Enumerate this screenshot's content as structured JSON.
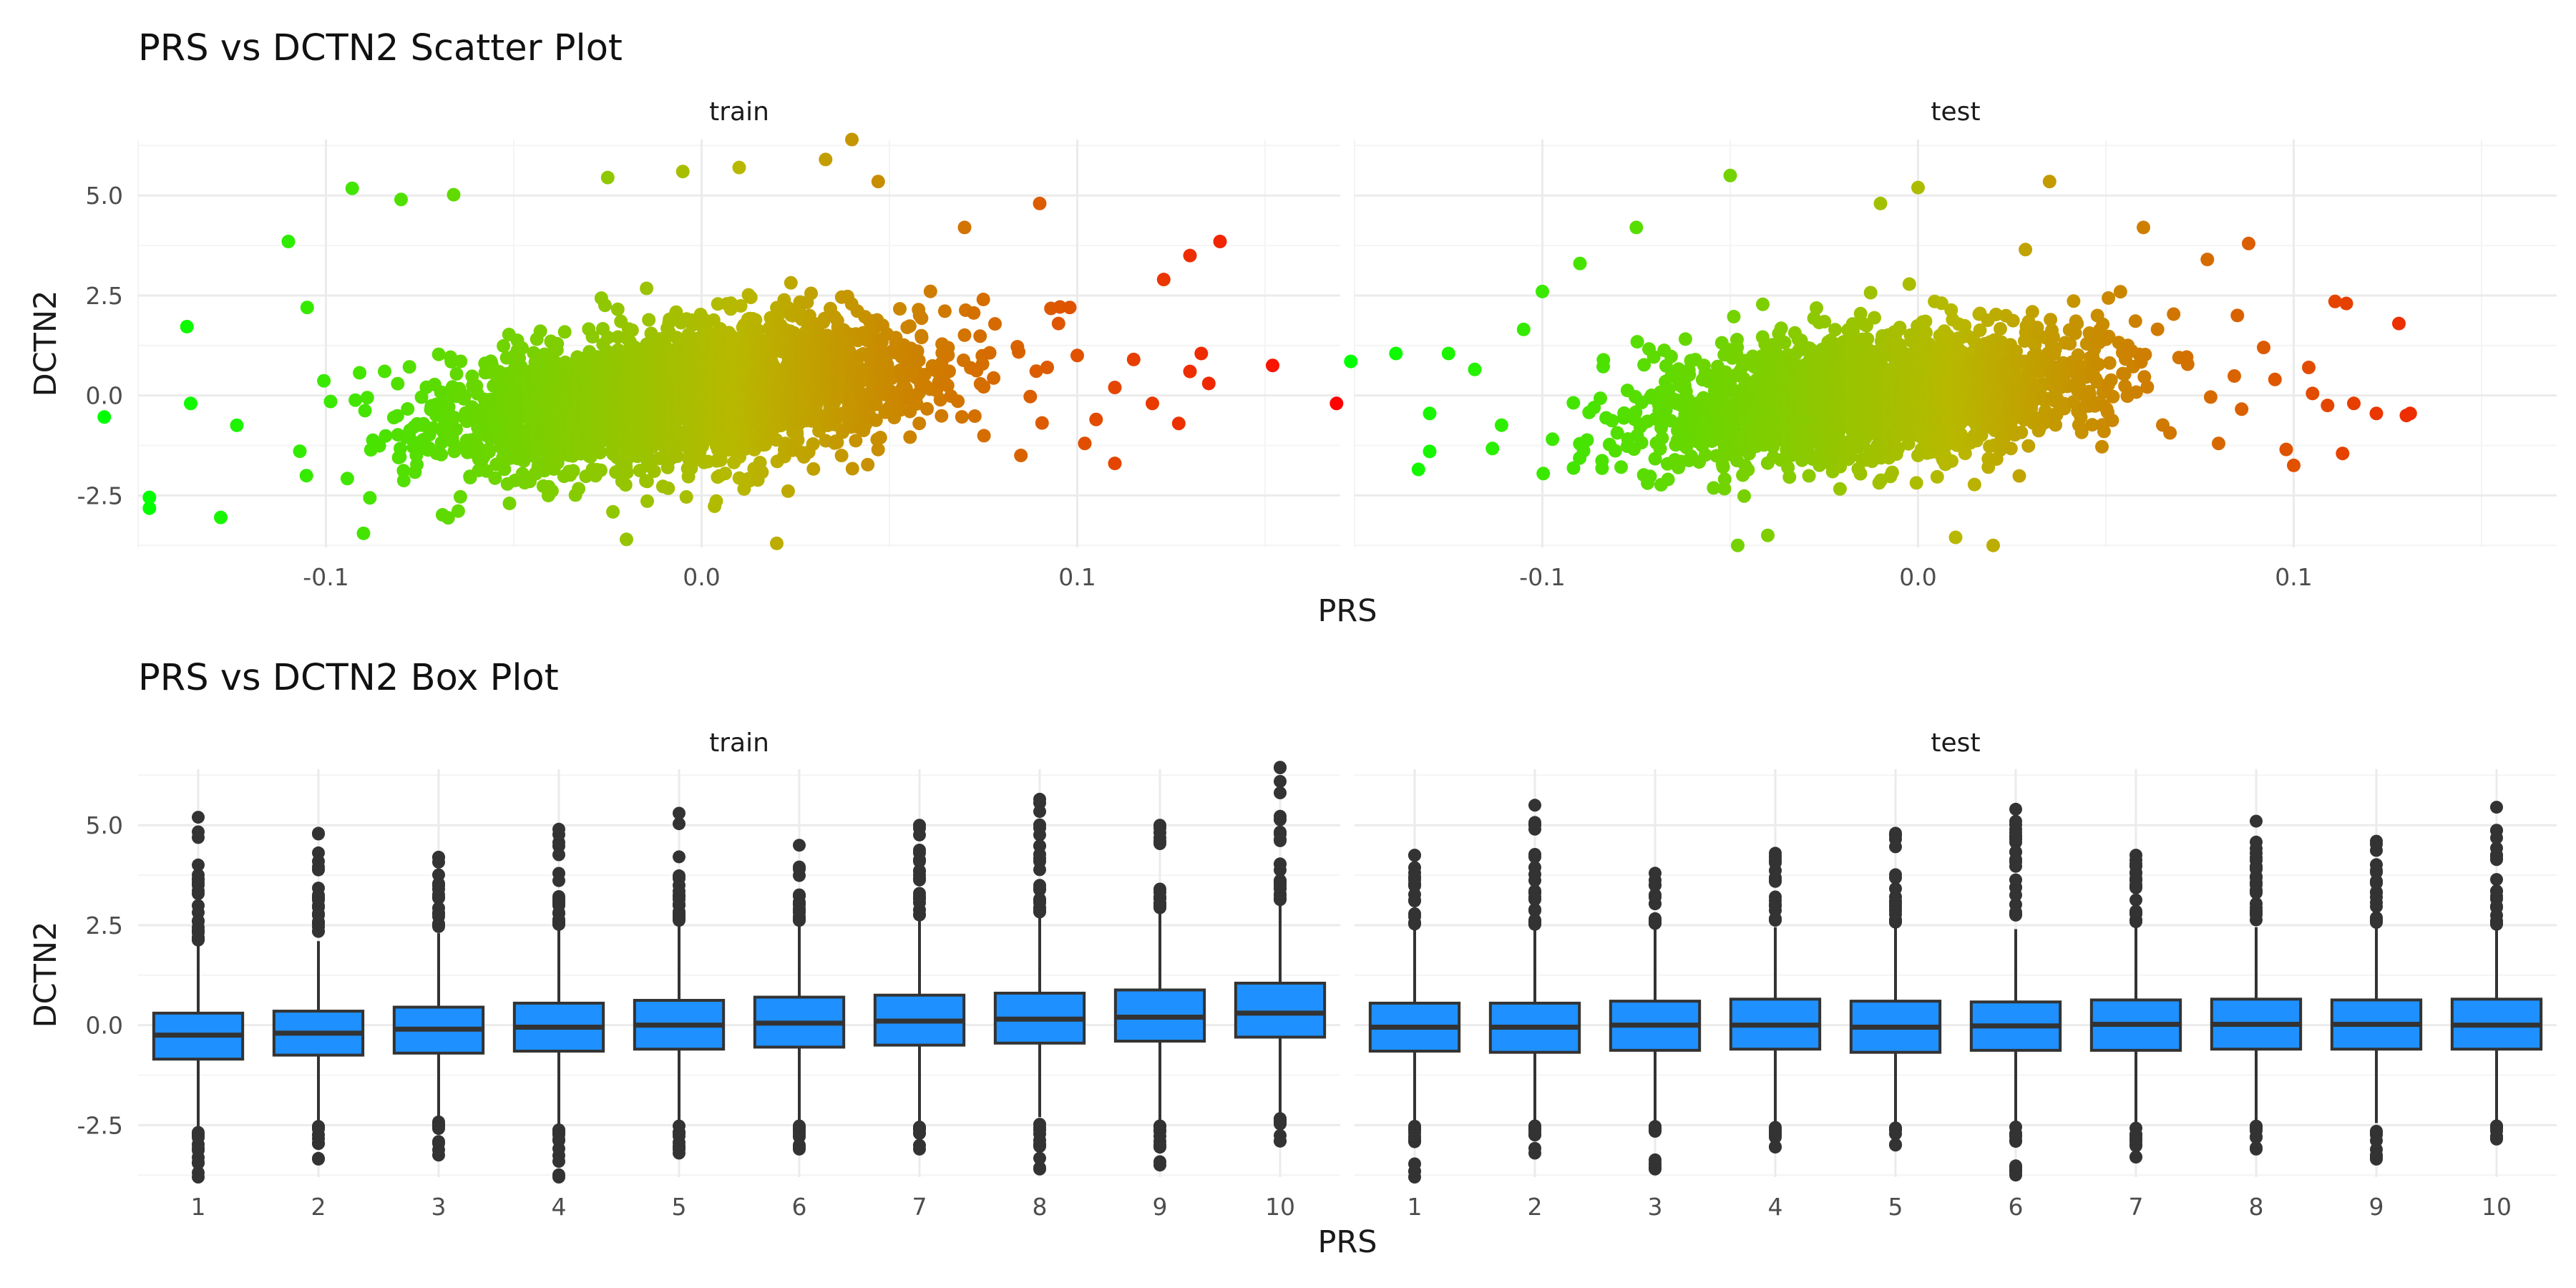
{
  "chart_data": [
    {
      "type": "scatter",
      "title": "PRS vs DCTN2 Scatter Plot",
      "xlabel": "PRS",
      "ylabel": "DCTN2",
      "xlim": [
        -0.15,
        0.17
      ],
      "ylim": [
        -3.8,
        6.4
      ],
      "xticks": [
        "-0.1",
        "0.0",
        "0.1"
      ],
      "yticks": [
        "-2.5",
        "0.0",
        "2.5",
        "5.0"
      ],
      "grid": true,
      "legend": "none",
      "color_scale": {
        "low": "#00ff00",
        "mid": "#b8b800",
        "high": "#ff0000",
        "mapped_to": "PRS"
      },
      "panels": [
        {
          "label": "train",
          "cloud": {
            "n": 2600,
            "x_mean": -0.005,
            "x_sd": 0.032,
            "y_sd": 0.85,
            "slope": 10
          },
          "points": [
            [
              -0.159,
              -0.54
            ],
            [
              -0.147,
              -2.55
            ],
            [
              -0.147,
              -2.82
            ],
            [
              -0.137,
              1.72
            ],
            [
              -0.136,
              -0.2
            ],
            [
              -0.128,
              -3.05
            ],
            [
              -0.11,
              3.85
            ],
            [
              -0.105,
              2.2
            ],
            [
              -0.093,
              5.18
            ],
            [
              -0.09,
              -3.45
            ],
            [
              -0.08,
              4.9
            ],
            [
              -0.066,
              5.02
            ],
            [
              -0.025,
              5.45
            ],
            [
              -0.02,
              -3.6
            ],
            [
              -0.005,
              5.6
            ],
            [
              0.01,
              5.7
            ],
            [
              0.02,
              -3.7
            ],
            [
              0.033,
              5.9
            ],
            [
              0.04,
              6.4
            ],
            [
              0.047,
              5.35
            ],
            [
              0.07,
              4.2
            ],
            [
              0.09,
              4.8
            ],
            [
              0.075,
              2.4
            ],
            [
              0.095,
              1.8
            ],
            [
              0.1,
              1.0
            ],
            [
              0.105,
              -0.6
            ],
            [
              0.11,
              -1.7
            ],
            [
              0.12,
              -0.2
            ],
            [
              0.123,
              2.9
            ],
            [
              0.127,
              -0.7
            ],
            [
              0.13,
              0.6
            ],
            [
              0.13,
              3.5
            ],
            [
              0.133,
              1.05
            ],
            [
              0.135,
              0.3
            ],
            [
              0.138,
              3.85
            ],
            [
              0.152,
              0.75
            ],
            [
              0.169,
              -0.2
            ],
            [
              0.11,
              0.2
            ],
            [
              0.115,
              0.9
            ],
            [
              0.102,
              -1.2
            ],
            [
              0.098,
              2.2
            ],
            [
              0.085,
              -1.5
            ],
            [
              0.092,
              0.7
            ]
          ]
        },
        {
          "label": "test",
          "cloud": {
            "n": 2000,
            "x_mean": -0.01,
            "x_sd": 0.03,
            "y_sd": 0.8,
            "slope": 8
          },
          "points": [
            [
              -0.151,
              0.85
            ],
            [
              -0.139,
              1.05
            ],
            [
              -0.133,
              -1.85
            ],
            [
              -0.13,
              -0.45
            ],
            [
              -0.13,
              -1.4
            ],
            [
              -0.125,
              1.05
            ],
            [
              -0.118,
              0.65
            ],
            [
              -0.105,
              1.65
            ],
            [
              -0.1,
              2.6
            ],
            [
              -0.09,
              3.3
            ],
            [
              -0.075,
              4.2
            ],
            [
              -0.05,
              5.5
            ],
            [
              -0.048,
              -3.75
            ],
            [
              -0.04,
              -3.5
            ],
            [
              -0.01,
              4.8
            ],
            [
              0.0,
              5.2
            ],
            [
              0.01,
              -3.55
            ],
            [
              0.02,
              -3.75
            ],
            [
              0.035,
              5.35
            ],
            [
              0.06,
              4.2
            ],
            [
              0.077,
              3.4
            ],
            [
              0.088,
              3.8
            ],
            [
              0.085,
              2.0
            ],
            [
              0.095,
              0.4
            ],
            [
              0.098,
              -1.35
            ],
            [
              0.104,
              0.7
            ],
            [
              0.1,
              -1.75
            ],
            [
              0.109,
              -0.25
            ],
            [
              0.111,
              2.35
            ],
            [
              0.113,
              -1.45
            ],
            [
              0.114,
              2.3
            ],
            [
              0.116,
              -0.2
            ],
            [
              0.122,
              -0.45
            ],
            [
              0.128,
              1.8
            ],
            [
              0.13,
              -0.5
            ],
            [
              0.131,
              -0.45
            ],
            [
              0.092,
              1.2
            ],
            [
              0.08,
              -1.2
            ],
            [
              0.105,
              0.05
            ]
          ]
        }
      ]
    },
    {
      "type": "box",
      "title": "PRS vs DCTN2 Box Plot",
      "xlabel": "PRS",
      "ylabel": "DCTN2",
      "categories": [
        "1",
        "2",
        "3",
        "4",
        "5",
        "6",
        "7",
        "8",
        "9",
        "10"
      ],
      "ylim": [
        -3.8,
        6.4
      ],
      "yticks": [
        "-2.5",
        "0.0",
        "2.5",
        "5.0"
      ],
      "box_color": "#1e90ff",
      "grid": true,
      "panels": [
        {
          "label": "train",
          "boxes": [
            {
              "q1": -0.85,
              "median": -0.25,
              "q3": 0.3,
              "lower": -2.55,
              "upper": 2.0,
              "out_max": 5.2,
              "out_min": -3.8
            },
            {
              "q1": -0.75,
              "median": -0.2,
              "q3": 0.35,
              "lower": -2.4,
              "upper": 2.1,
              "out_max": 4.8,
              "out_min": -3.35
            },
            {
              "q1": -0.7,
              "median": -0.1,
              "q3": 0.45,
              "lower": -2.3,
              "upper": 2.3,
              "out_max": 4.2,
              "out_min": -3.25
            },
            {
              "q1": -0.65,
              "median": -0.05,
              "q3": 0.55,
              "lower": -2.5,
              "upper": 2.4,
              "out_max": 4.9,
              "out_min": -3.8
            },
            {
              "q1": -0.6,
              "median": 0.0,
              "q3": 0.62,
              "lower": -2.4,
              "upper": 2.5,
              "out_max": 5.3,
              "out_min": -3.2
            },
            {
              "q1": -0.55,
              "median": 0.05,
              "q3": 0.7,
              "lower": -2.4,
              "upper": 2.5,
              "out_max": 4.5,
              "out_min": -3.1
            },
            {
              "q1": -0.5,
              "median": 0.1,
              "q3": 0.75,
              "lower": -2.4,
              "upper": 2.6,
              "out_max": 5.0,
              "out_min": -3.1
            },
            {
              "q1": -0.45,
              "median": 0.15,
              "q3": 0.8,
              "lower": -2.3,
              "upper": 2.7,
              "out_max": 5.65,
              "out_min": -3.6
            },
            {
              "q1": -0.4,
              "median": 0.2,
              "q3": 0.88,
              "lower": -2.4,
              "upper": 2.8,
              "out_max": 5.0,
              "out_min": -3.5
            },
            {
              "q1": -0.3,
              "median": 0.3,
              "q3": 1.05,
              "lower": -2.2,
              "upper": 3.0,
              "out_max": 6.45,
              "out_min": -2.9
            }
          ]
        },
        {
          "label": "test",
          "boxes": [
            {
              "q1": -0.65,
              "median": -0.05,
              "q3": 0.55,
              "lower": -2.4,
              "upper": 2.4,
              "out_max": 4.25,
              "out_min": -3.8
            },
            {
              "q1": -0.68,
              "median": -0.05,
              "q3": 0.55,
              "lower": -2.4,
              "upper": 2.4,
              "out_max": 5.5,
              "out_min": -3.2
            },
            {
              "q1": -0.63,
              "median": 0.0,
              "q3": 0.6,
              "lower": -2.4,
              "upper": 2.4,
              "out_max": 3.8,
              "out_min": -3.6
            },
            {
              "q1": -0.6,
              "median": 0.0,
              "q3": 0.65,
              "lower": -2.4,
              "upper": 2.45,
              "out_max": 4.3,
              "out_min": -3.05
            },
            {
              "q1": -0.68,
              "median": -0.05,
              "q3": 0.6,
              "lower": -2.45,
              "upper": 2.45,
              "out_max": 4.8,
              "out_min": -3.0
            },
            {
              "q1": -0.63,
              "median": -0.02,
              "q3": 0.58,
              "lower": -2.4,
              "upper": 2.4,
              "out_max": 5.4,
              "out_min": -3.75
            },
            {
              "q1": -0.63,
              "median": 0.02,
              "q3": 0.63,
              "lower": -2.45,
              "upper": 2.45,
              "out_max": 4.25,
              "out_min": -3.3
            },
            {
              "q1": -0.6,
              "median": 0.02,
              "q3": 0.65,
              "lower": -2.4,
              "upper": 2.45,
              "out_max": 5.1,
              "out_min": -3.1
            },
            {
              "q1": -0.6,
              "median": 0.02,
              "q3": 0.63,
              "lower": -2.45,
              "upper": 2.45,
              "out_max": 4.6,
              "out_min": -3.35
            },
            {
              "q1": -0.6,
              "median": 0.0,
              "q3": 0.65,
              "lower": -2.4,
              "upper": 2.4,
              "out_max": 5.45,
              "out_min": -2.85
            }
          ]
        }
      ]
    }
  ]
}
